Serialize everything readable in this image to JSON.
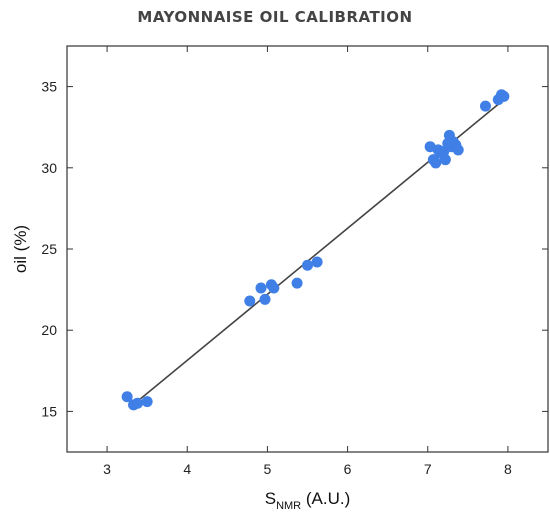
{
  "chart_data": {
    "type": "scatter",
    "title": "MAYONNAISE OIL CALIBRATION",
    "xlabel": {
      "main": "S",
      "sub": "NMR",
      "suffix": " (A.U.)"
    },
    "ylabel": "oil (%)",
    "xlim": [
      2.5,
      8.5
    ],
    "ylim": [
      12.5,
      37.5
    ],
    "xticks": [
      3,
      4,
      5,
      6,
      7,
      8
    ],
    "yticks": [
      15,
      20,
      25,
      30,
      35
    ],
    "grid": false,
    "point_color": "#3f7fe6",
    "line_color": "#444444",
    "points": [
      {
        "x": 3.25,
        "y": 15.9
      },
      {
        "x": 3.33,
        "y": 15.4
      },
      {
        "x": 3.38,
        "y": 15.5
      },
      {
        "x": 3.5,
        "y": 15.6
      },
      {
        "x": 4.78,
        "y": 21.8
      },
      {
        "x": 4.92,
        "y": 22.6
      },
      {
        "x": 4.97,
        "y": 21.9
      },
      {
        "x": 5.05,
        "y": 22.8
      },
      {
        "x": 5.08,
        "y": 22.6
      },
      {
        "x": 5.37,
        "y": 22.9
      },
      {
        "x": 5.5,
        "y": 24.0
      },
      {
        "x": 5.62,
        "y": 24.2
      },
      {
        "x": 7.03,
        "y": 31.3
      },
      {
        "x": 7.07,
        "y": 30.5
      },
      {
        "x": 7.1,
        "y": 30.3
      },
      {
        "x": 7.13,
        "y": 31.1
      },
      {
        "x": 7.17,
        "y": 30.9
      },
      {
        "x": 7.2,
        "y": 31.0
      },
      {
        "x": 7.22,
        "y": 30.5
      },
      {
        "x": 7.25,
        "y": 31.5
      },
      {
        "x": 7.27,
        "y": 32.0
      },
      {
        "x": 7.3,
        "y": 31.3
      },
      {
        "x": 7.32,
        "y": 31.6
      },
      {
        "x": 7.35,
        "y": 31.4
      },
      {
        "x": 7.38,
        "y": 31.1
      },
      {
        "x": 7.72,
        "y": 33.8
      },
      {
        "x": 7.88,
        "y": 34.2
      },
      {
        "x": 7.92,
        "y": 34.5
      },
      {
        "x": 7.95,
        "y": 34.4
      }
    ],
    "fit_line": {
      "x": [
        3.3,
        7.95
      ],
      "y": [
        15.3,
        34.2
      ]
    }
  }
}
